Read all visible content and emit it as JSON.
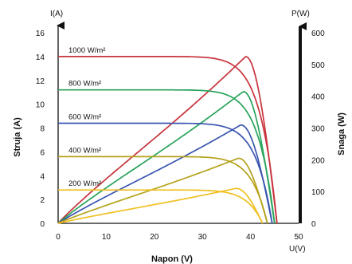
{
  "chart_data": {
    "type": "line",
    "xlabel": "Napon (V)",
    "ylabel_left": "Struja (A)",
    "ylabel_right": "Snaga (W)",
    "x_unit": "U(V)",
    "y_left_unit": "I(A)",
    "y_right_unit": "P(W)",
    "xlim": [
      0,
      50
    ],
    "ylim_left": [
      0,
      16
    ],
    "ylim_right": [
      0,
      600
    ],
    "x_ticks": [
      "0",
      "10",
      "20",
      "30",
      "40",
      "50"
    ],
    "y_left_ticks": [
      "0",
      "2",
      "4",
      "6",
      "8",
      "10",
      "12",
      "14",
      "16"
    ],
    "y_right_ticks": [
      "0",
      "100",
      "200",
      "300",
      "400",
      "500",
      "600"
    ],
    "grid": false,
    "series": [
      {
        "name": "1000 W/m²",
        "color": "#c8333c",
        "isc": 14.0,
        "voc": 45.5,
        "pmax": 525,
        "vmp": 39.0
      },
      {
        "name": "800 W/m²",
        "color": "#27a35a",
        "isc": 11.2,
        "voc": 45.0,
        "pmax": 415,
        "vmp": 38.5
      },
      {
        "name": "600 W/m²",
        "color": "#3a55b0",
        "isc": 8.4,
        "voc": 44.5,
        "pmax": 310,
        "vmp": 38.0
      },
      {
        "name": "400 W/m²",
        "color": "#b5a21a",
        "isc": 5.6,
        "voc": 43.5,
        "pmax": 205,
        "vmp": 37.5
      },
      {
        "name": "200 W/m²",
        "color": "#f0c020",
        "isc": 2.8,
        "voc": 42.5,
        "pmax": 110,
        "vmp": 37.0
      }
    ]
  }
}
